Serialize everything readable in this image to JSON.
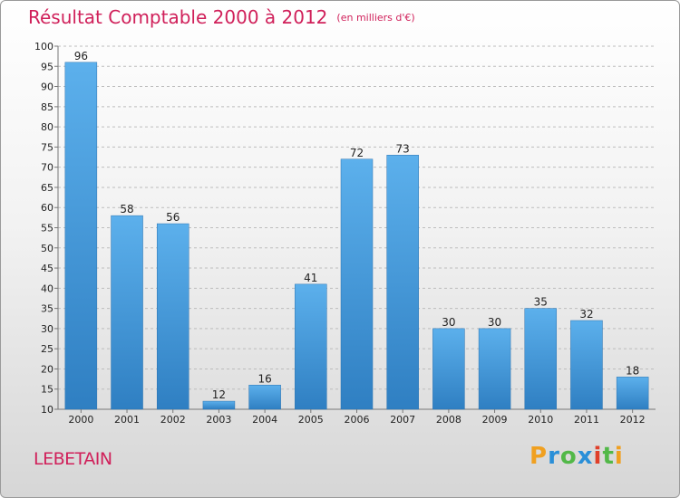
{
  "title": "Résultat Comptable 2000 à 2012",
  "subtitle": "(en milliers d'€)",
  "commune": "LEBETAIN",
  "logo": {
    "text": "Proxiti",
    "letters": [
      "P",
      "r",
      "o",
      "x",
      "i",
      "t",
      "i"
    ],
    "colors": [
      "#f0a020",
      "#2a8fd8",
      "#52b848",
      "#2a8fd8",
      "#e0402a",
      "#52b848",
      "#f0a020"
    ]
  },
  "colors": {
    "title": "#d0205a",
    "bar_top": "#5cb0ec",
    "bar_bottom": "#2f7fc2",
    "axis_text": "#222222",
    "grid": "#bdbdbd"
  },
  "chart_data": {
    "type": "bar",
    "categories": [
      "2000",
      "2001",
      "2002",
      "2003",
      "2004",
      "2005",
      "2006",
      "2007",
      "2008",
      "2009",
      "2010",
      "2011",
      "2012"
    ],
    "values": [
      96,
      58,
      56,
      12,
      16,
      41,
      72,
      73,
      30,
      30,
      35,
      32,
      18
    ],
    "title": "Résultat Comptable 2000 à 2012",
    "xlabel": "",
    "ylabel": "",
    "ylim": [
      10,
      100
    ],
    "yticks": [
      10,
      15,
      20,
      25,
      30,
      35,
      40,
      45,
      50,
      55,
      60,
      65,
      70,
      75,
      80,
      85,
      90,
      95,
      100
    ],
    "grid": "horizontal dashed",
    "data_labels": true
  }
}
